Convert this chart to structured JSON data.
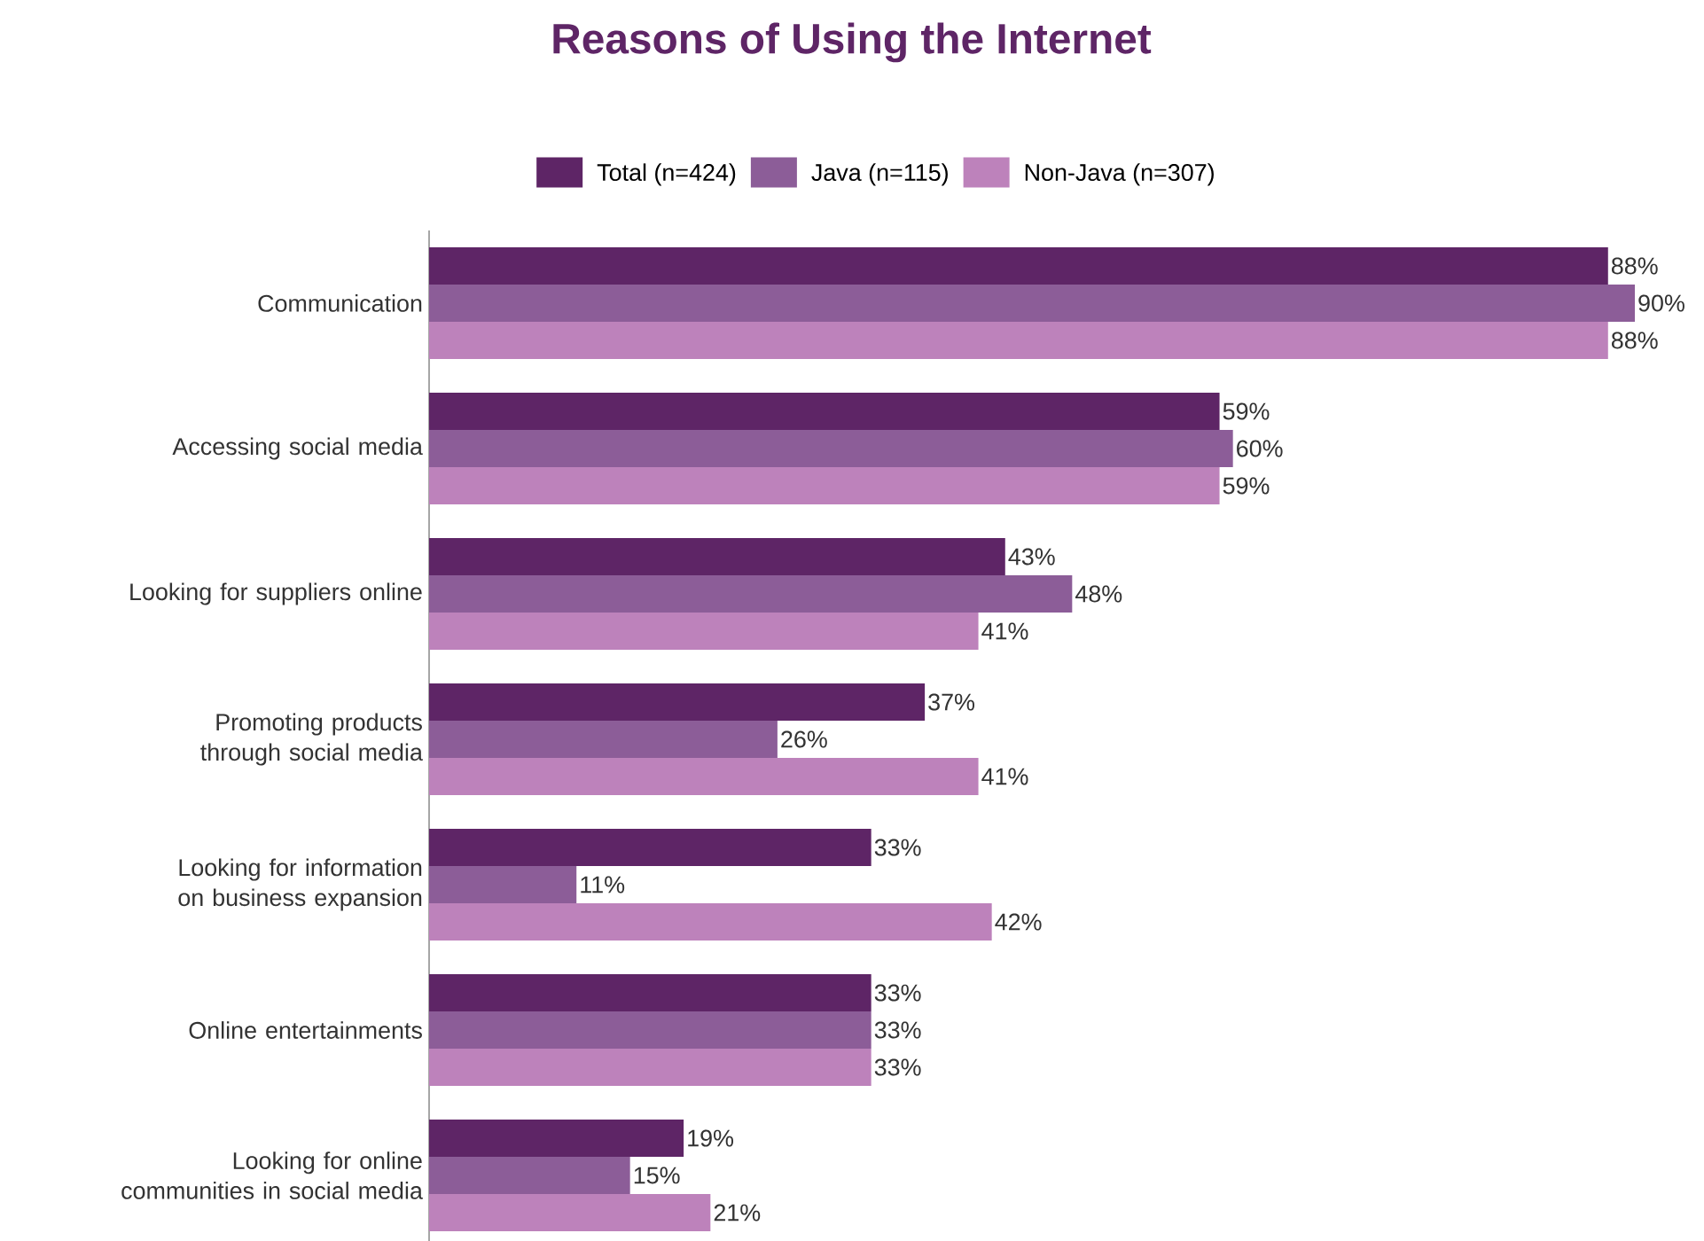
{
  "chart_data": {
    "type": "bar",
    "orientation": "horizontal",
    "title": "Reasons of Using the Internet",
    "legend": "top",
    "categories": [
      "Communication",
      "Accessing social media",
      "Looking for suppliers online",
      "Promoting products through social media",
      "Looking for information on business expansion",
      "Online entertainments",
      "Looking for online communities in social media"
    ],
    "series": [
      {
        "name": "Total (n=424)",
        "color": "#5e2566",
        "values": [
          88,
          59,
          43,
          37,
          33,
          33,
          19
        ],
        "value_labels": [
          "88%",
          "59%",
          "43%",
          "37%",
          "33%",
          "33%",
          "19%"
        ]
      },
      {
        "name": "Java (n=115)",
        "color": "#8c5d98",
        "values": [
          90,
          60,
          48,
          26,
          11,
          33,
          15
        ],
        "value_labels": [
          "90%",
          "60%",
          "48%",
          "26%",
          "11%",
          "33%",
          "15%"
        ]
      },
      {
        "name": "Non-Java (n=307)",
        "color": "#bd82bb",
        "values": [
          88,
          59,
          41,
          41,
          42,
          33,
          21
        ],
        "value_labels": [
          "88%",
          "59%",
          "41%",
          "41%",
          "42%",
          "33%",
          "21%"
        ]
      }
    ]
  }
}
